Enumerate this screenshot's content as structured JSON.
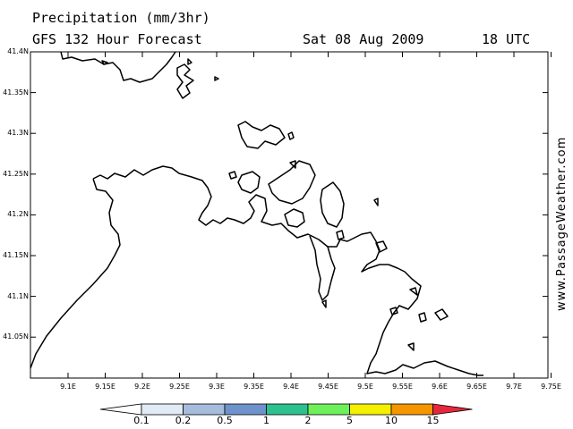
{
  "header": {
    "title": "Precipitation (mm/3hr)",
    "model": "GFS 132 Hour Forecast",
    "date": "Sat 08 Aug 2009",
    "time": "18 UTC"
  },
  "watermark": "www.PassageWeather.com",
  "map": {
    "lat_labels": [
      "41.4N",
      "41.35N",
      "41.3N",
      "41.25N",
      "41.2N",
      "41.15N",
      "41.1N",
      "41.05N"
    ],
    "lon_labels": [
      "9.1E",
      "9.15E",
      "9.2E",
      "9.25E",
      "9.3E",
      "9.35E",
      "9.4E",
      "9.45E",
      "9.5E",
      "9.55E",
      "9.6E",
      "9.65E",
      "9.7E",
      "9.75E"
    ],
    "coastline_color": "#000000"
  },
  "colorbar": {
    "labels": [
      "0.1",
      "0.2",
      "0.5",
      "1",
      "2",
      "5",
      "10",
      "15"
    ],
    "colors": [
      "#ffffff",
      "#e1ebf5",
      "#a5bcdc",
      "#6e93cc",
      "#2cc28f",
      "#6ef05a",
      "#f5f000",
      "#f59600",
      "#e6283c"
    ]
  }
}
